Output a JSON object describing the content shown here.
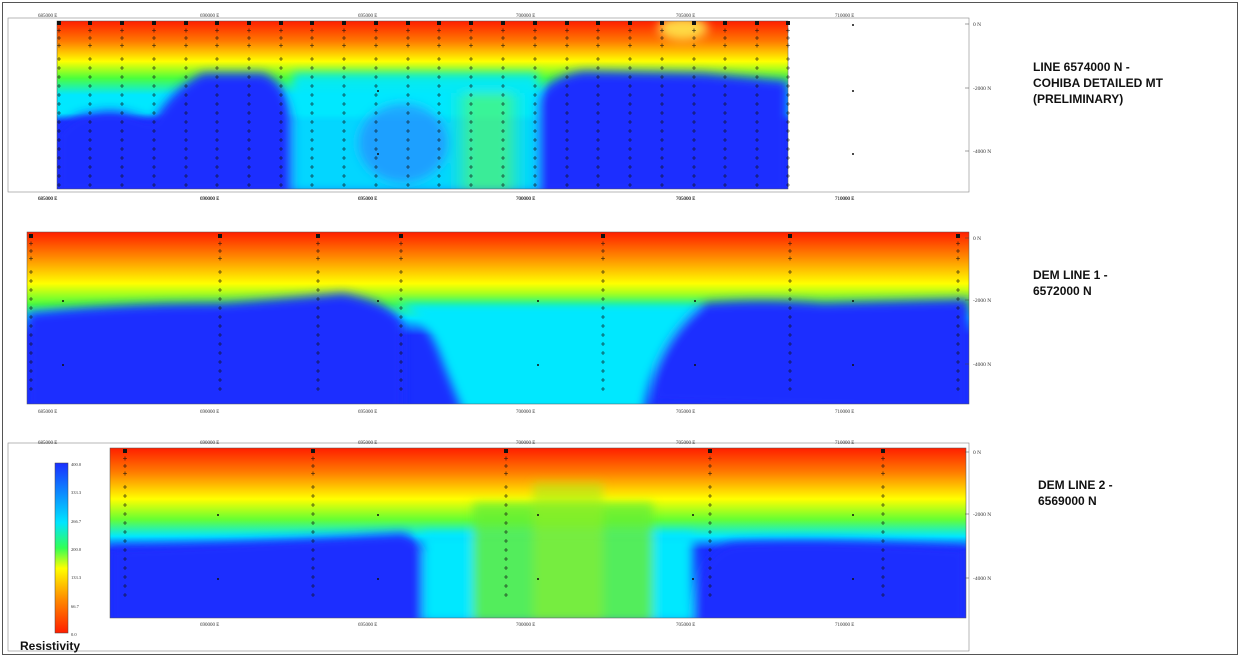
{
  "colors": {
    "low": "#ff1e00",
    "mid_low": "#ffff00",
    "mid": "#33ff55",
    "mid_high": "#00e5ff",
    "high": "#1a2fff"
  },
  "legend": {
    "title": "Resistivity",
    "ticks": [
      "400.0",
      "333.3",
      "266.7",
      "200.0",
      "133.3",
      "66.7",
      "0.0"
    ]
  },
  "panels": [
    {
      "label": "LINE 6574000 N -\nCOHIBA DETAILED MT\n (PRELIMINARY)",
      "x_ticks_top": [
        "685000 E",
        "690000 E",
        "695000 E",
        "700000 E",
        "705000 E",
        "710000 E"
      ],
      "x_ticks_bottom": [
        "685000 E",
        "690000 E",
        "695000 E",
        "700000 E",
        "705000 E",
        "710000 E"
      ],
      "depth_ticks": [
        "0 N",
        "-2000 N",
        "-4000 N"
      ]
    },
    {
      "label": "DEM LINE 1 -\n6572000 N",
      "x_ticks_top": [
        "685000 E",
        "690000 E",
        "695000 E",
        "700000 E",
        "705000 E",
        "710000 E"
      ],
      "x_ticks_bottom": [
        "685000 E",
        "690000 E",
        "695000 E",
        "700000 E",
        "705000 E",
        "710000 E"
      ],
      "depth_ticks": [
        "0 N",
        "-2000 N",
        "-4000 N"
      ]
    },
    {
      "label": "DEM LINE 2 -\n6569000 N",
      "x_ticks_top": [
        "685000 E",
        "690000 E",
        "695000 E",
        "700000 E",
        "705000 E",
        "710000 E"
      ],
      "x_ticks_bottom": [
        "690000 E",
        "695000 E",
        "700000 E",
        "705000 E",
        "710000 E"
      ],
      "depth_ticks": [
        "0 N",
        "-2000 N",
        "-4000 N"
      ]
    }
  ]
}
